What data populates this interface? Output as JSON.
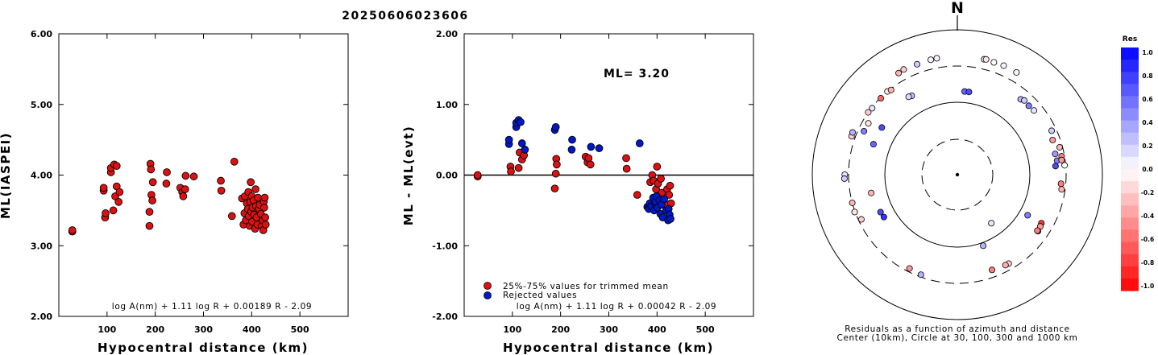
{
  "figure_title": "20250606023606",
  "colors": {
    "red": "#dd1111",
    "blue": "#0018c8",
    "frame": "#000000"
  },
  "chart_data": [
    {
      "type": "scatter",
      "xlabel": "Hypocentral distance (km)",
      "ylabel": "ML(IASPEI)",
      "xlim": [
        0,
        600
      ],
      "ylim": [
        2.0,
        6.0
      ],
      "xticks": [
        "100",
        "200",
        "300",
        "400",
        "500"
      ],
      "yticks": [
        "2.00",
        "3.00",
        "4.00",
        "5.00",
        "6.00"
      ],
      "formula": "log A(nm) + 1.11 log R + 0.00189 R - 2.09",
      "series": [
        {
          "color": "red",
          "points": [
            [
              28,
              3.2
            ],
            [
              28,
              3.22
            ],
            [
              93,
              3.78
            ],
            [
              93,
              3.82
            ],
            [
              96,
              3.4
            ],
            [
              97,
              3.46
            ],
            [
              108,
              4.04
            ],
            [
              108,
              4.1
            ],
            [
              113,
              3.5
            ],
            [
              115,
              4.15
            ],
            [
              117,
              3.7
            ],
            [
              120,
              4.13
            ],
            [
              120,
              3.84
            ],
            [
              124,
              3.62
            ],
            [
              126,
              3.76
            ],
            [
              188,
              3.28
            ],
            [
              188,
              3.48
            ],
            [
              190,
              4.16
            ],
            [
              191,
              4.08
            ],
            [
              192,
              3.72
            ],
            [
              194,
              3.64
            ],
            [
              195,
              3.9
            ],
            [
              223,
              3.88
            ],
            [
              224,
              4.04
            ],
            [
              252,
              3.82
            ],
            [
              256,
              3.76
            ],
            [
              258,
              3.7
            ],
            [
              262,
              3.8
            ],
            [
              263,
              3.99
            ],
            [
              280,
              3.98
            ],
            [
              336,
              3.92
            ],
            [
              337,
              3.78
            ],
            [
              359,
              3.42
            ],
            [
              364,
              4.19
            ],
            [
              380,
              3.67
            ],
            [
              383,
              3.3
            ],
            [
              385,
              3.46
            ],
            [
              386,
              3.7
            ],
            [
              388,
              3.36
            ],
            [
              390,
              3.6
            ],
            [
              392,
              3.52
            ],
            [
              393,
              3.76
            ],
            [
              394,
              3.42
            ],
            [
              396,
              3.28
            ],
            [
              397,
              3.62
            ],
            [
              398,
              3.9
            ],
            [
              399,
              3.48
            ],
            [
              400,
              3.7
            ],
            [
              401,
              3.34
            ],
            [
              402,
              3.54
            ],
            [
              404,
              3.64
            ],
            [
              405,
              3.44
            ],
            [
              407,
              3.24
            ],
            [
              408,
              3.8
            ],
            [
              409,
              3.56
            ],
            [
              410,
              3.4
            ],
            [
              412,
              3.3
            ],
            [
              413,
              3.68
            ],
            [
              415,
              3.52
            ],
            [
              417,
              3.58
            ],
            [
              419,
              3.45
            ],
            [
              421,
              3.28
            ],
            [
              423,
              3.36
            ],
            [
              424,
              3.22
            ],
            [
              425,
              3.62
            ],
            [
              426,
              3.54
            ],
            [
              427,
              3.68
            ],
            [
              428,
              3.4
            ],
            [
              429,
              3.3
            ]
          ]
        }
      ]
    },
    {
      "type": "scatter",
      "xlabel": "Hypocentral distance (km)",
      "ylabel": "ML - ML(evt)",
      "xlim": [
        0,
        600
      ],
      "ylim": [
        -2.0,
        2.0
      ],
      "xticks": [
        "100",
        "200",
        "300",
        "400",
        "500"
      ],
      "yticks": [
        "-2.00",
        "-1.00",
        "0.00",
        "1.00",
        "2.00"
      ],
      "ml_label": "ML= 3.20",
      "formula": "log A(nm) + 1.11 log R + 0.00042 R - 2.09",
      "legend": [
        "25%-75% values for trimmed mean",
        "Rejected values"
      ],
      "series": [
        {
          "color": "red",
          "points": [
            [
              28,
              -0.02
            ],
            [
              28,
              0.0
            ],
            [
              96,
              0.12
            ],
            [
              97,
              0.05
            ],
            [
              113,
              0.1
            ],
            [
              115,
              0.32
            ],
            [
              120,
              0.22
            ],
            [
              124,
              0.28
            ],
            [
              188,
              -0.19
            ],
            [
              190,
              0.02
            ],
            [
              191,
              0.23
            ],
            [
              192,
              0.15
            ],
            [
              252,
              0.26
            ],
            [
              256,
              0.18
            ],
            [
              258,
              0.24
            ],
            [
              262,
              0.15
            ],
            [
              336,
              0.24
            ],
            [
              337,
              0.09
            ],
            [
              359,
              -0.28
            ],
            [
              386,
              -0.1
            ],
            [
              390,
              0.0
            ],
            [
              393,
              -0.08
            ],
            [
              398,
              -0.2
            ],
            [
              400,
              0.12
            ],
            [
              402,
              -0.12
            ],
            [
              404,
              -0.3
            ],
            [
              408,
              -0.05
            ],
            [
              410,
              -0.25
            ],
            [
              413,
              -0.35
            ],
            [
              417,
              -0.42
            ],
            [
              421,
              -0.2
            ],
            [
              425,
              -0.28
            ],
            [
              427,
              -0.15
            ],
            [
              429,
              -0.4
            ]
          ]
        },
        {
          "color": "blue",
          "points": [
            [
              93,
              0.44
            ],
            [
              93,
              0.5
            ],
            [
              108,
              0.68
            ],
            [
              108,
              0.74
            ],
            [
              113,
              0.78
            ],
            [
              117,
              0.75
            ],
            [
              120,
              0.45
            ],
            [
              126,
              0.36
            ],
            [
              188,
              0.64
            ],
            [
              190,
              0.68
            ],
            [
              223,
              0.36
            ],
            [
              224,
              0.5
            ],
            [
              263,
              0.4
            ],
            [
              280,
              0.38
            ],
            [
              364,
              0.45
            ],
            [
              380,
              -0.45
            ],
            [
              383,
              -0.48
            ],
            [
              385,
              -0.4
            ],
            [
              388,
              -0.44
            ],
            [
              392,
              -0.32
            ],
            [
              394,
              -0.5
            ],
            [
              396,
              -0.4
            ],
            [
              397,
              -0.38
            ],
            [
              399,
              -0.3
            ],
            [
              401,
              -0.46
            ],
            [
              405,
              -0.36
            ],
            [
              407,
              -0.55
            ],
            [
              409,
              -0.42
            ],
            [
              412,
              -0.6
            ],
            [
              415,
              -0.34
            ],
            [
              419,
              -0.5
            ],
            [
              423,
              -0.64
            ],
            [
              424,
              -0.48
            ],
            [
              426,
              -0.56
            ],
            [
              428,
              -0.62
            ]
          ]
        }
      ]
    },
    {
      "type": "polar",
      "north_label": "N",
      "caption": [
        "Residuals as a function of azimuth and distance",
        "Center (10km), Circle at 30, 100, 300 and 1000 km"
      ],
      "colorbar": {
        "title": "Res",
        "ticks": [
          "1.0",
          "0.8",
          "0.6",
          "0.4",
          "0.2",
          "0.0",
          "-0.2",
          "-0.4",
          "-0.6",
          "-0.8",
          "-1.0"
        ]
      },
      "points": [
        [
          18,
          410,
          0.0
        ],
        [
          23,
          415,
          0.05
        ],
        [
          13,
          415,
          0.1
        ],
        [
          14,
          420,
          -0.1
        ],
        [
          30,
          410,
          -0.05
        ],
        [
          330,
          400,
          -0.3
        ],
        [
          333,
          410,
          -0.2
        ],
        [
          340,
          403,
          0.2
        ],
        [
          347,
          408,
          0.05
        ],
        [
          350,
          412,
          -0.05
        ],
        [
          315,
          295,
          -0.6
        ],
        [
          320,
          300,
          -0.1
        ],
        [
          322,
          290,
          -0.3
        ],
        [
          308,
          294,
          0.1
        ],
        [
          305,
          300,
          -0.2
        ],
        [
          300,
          250,
          -0.1
        ],
        [
          295,
          252,
          0.5
        ],
        [
          290,
          340,
          -0.2
        ],
        [
          292,
          345,
          0.3
        ],
        [
          270,
          340,
          0.1
        ],
        [
          268,
          345,
          0.2
        ],
        [
          255,
          300,
          -0.3
        ],
        [
          250,
          305,
          -0.1
        ],
        [
          245,
          275,
          -0.2
        ],
        [
          330,
          176,
          0.25
        ],
        [
          328,
          180,
          0.15
        ],
        [
          302,
          165,
          0.7
        ],
        [
          290,
          166,
          0.6
        ],
        [
          240,
          145,
          0.8
        ],
        [
          244,
          148,
          0.7
        ],
        [
          258,
          160,
          -0.3
        ],
        [
          5,
          140,
          0.6
        ],
        [
          8,
          140,
          0.7
        ],
        [
          40,
          220,
          0.3
        ],
        [
          42,
          230,
          0.2
        ],
        [
          46,
          225,
          0.5
        ],
        [
          50,
          230,
          0.1
        ],
        [
          78,
          230,
          0.4
        ],
        [
          82,
          235,
          0.5
        ],
        [
          85,
          220,
          0.7
        ],
        [
          65,
          260,
          0.2
        ],
        [
          70,
          240,
          -0.4
        ],
        [
          75,
          275,
          -0.3
        ],
        [
          80,
          275,
          -0.5
        ],
        [
          82,
          270,
          -0.4
        ],
        [
          95,
          260,
          -0.5
        ],
        [
          98,
          270,
          -0.3
        ],
        [
          85,
          290,
          0.0
        ],
        [
          120,
          210,
          -0.8
        ],
        [
          122,
          215,
          -0.4
        ],
        [
          125,
          220,
          -0.6
        ],
        [
          125,
          214,
          -0.5
        ],
        [
          150,
          250,
          -0.2
        ],
        [
          152,
          248,
          -0.3
        ],
        [
          160,
          240,
          -0.5
        ],
        [
          120,
          130,
          0.5
        ],
        [
          145,
          65,
          0.1
        ],
        [
          160,
          110,
          0.3
        ],
        [
          200,
          280,
          0.3
        ],
        [
          207,
          270,
          -0.4
        ]
      ]
    }
  ]
}
